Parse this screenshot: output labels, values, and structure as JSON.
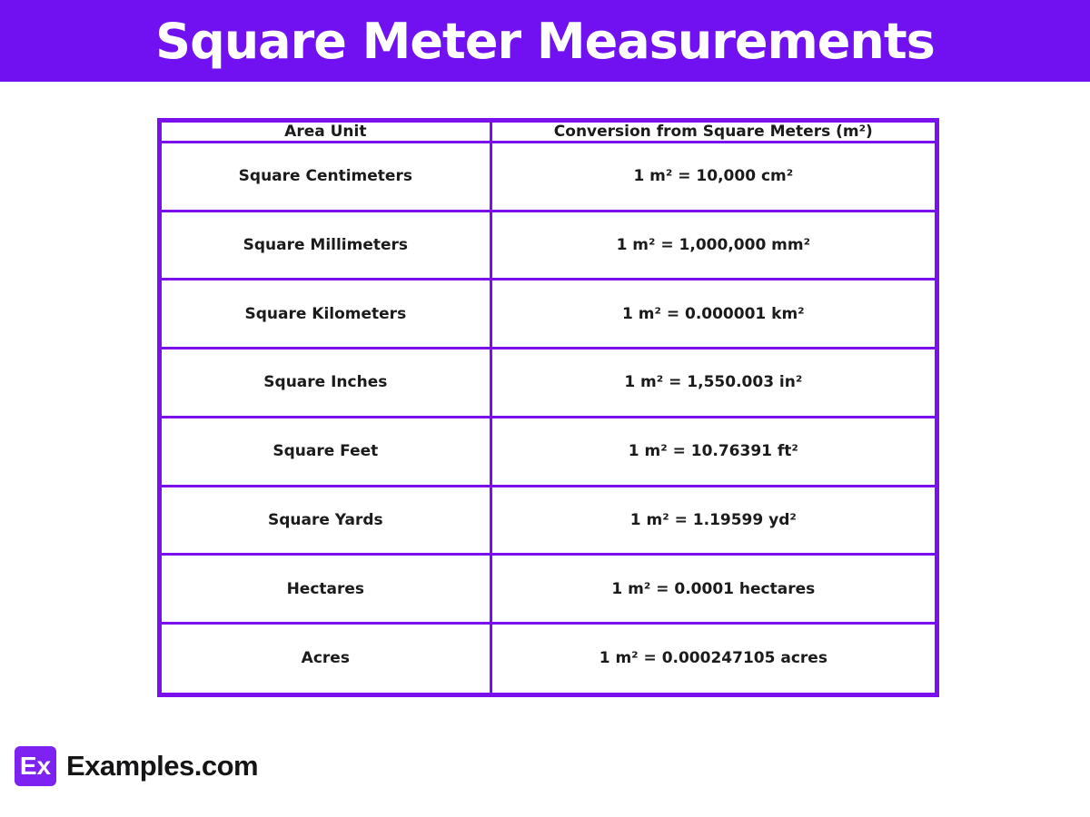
{
  "page_title": "Square Meter Measurements",
  "colors": {
    "banner": "#7110F0",
    "border": "#7B10EE",
    "badge": "#7D22F0",
    "text": "#1B1B1B"
  },
  "table": {
    "headers": [
      "Area Unit",
      "Conversion from Square Meters (m²)"
    ],
    "rows": [
      [
        "Square Centimeters",
        "1 m² = 10,000 cm²"
      ],
      [
        "Square Millimeters",
        "1 m² = 1,000,000 mm²"
      ],
      [
        "Square Kilometers",
        "1 m² = 0.000001 km²"
      ],
      [
        "Square Inches",
        "1 m² = 1,550.003 in²"
      ],
      [
        "Square Feet",
        "1 m² = 10.76391 ft²"
      ],
      [
        "Square Yards",
        "1 m² = 1.19599 yd²"
      ],
      [
        "Hectares",
        "1 m² = 0.0001 hectares"
      ],
      [
        "Acres",
        "1 m² = 0.000247105 acres"
      ]
    ]
  },
  "footer": {
    "logo_badge": "Ex",
    "logo_text": "Examples.com"
  }
}
